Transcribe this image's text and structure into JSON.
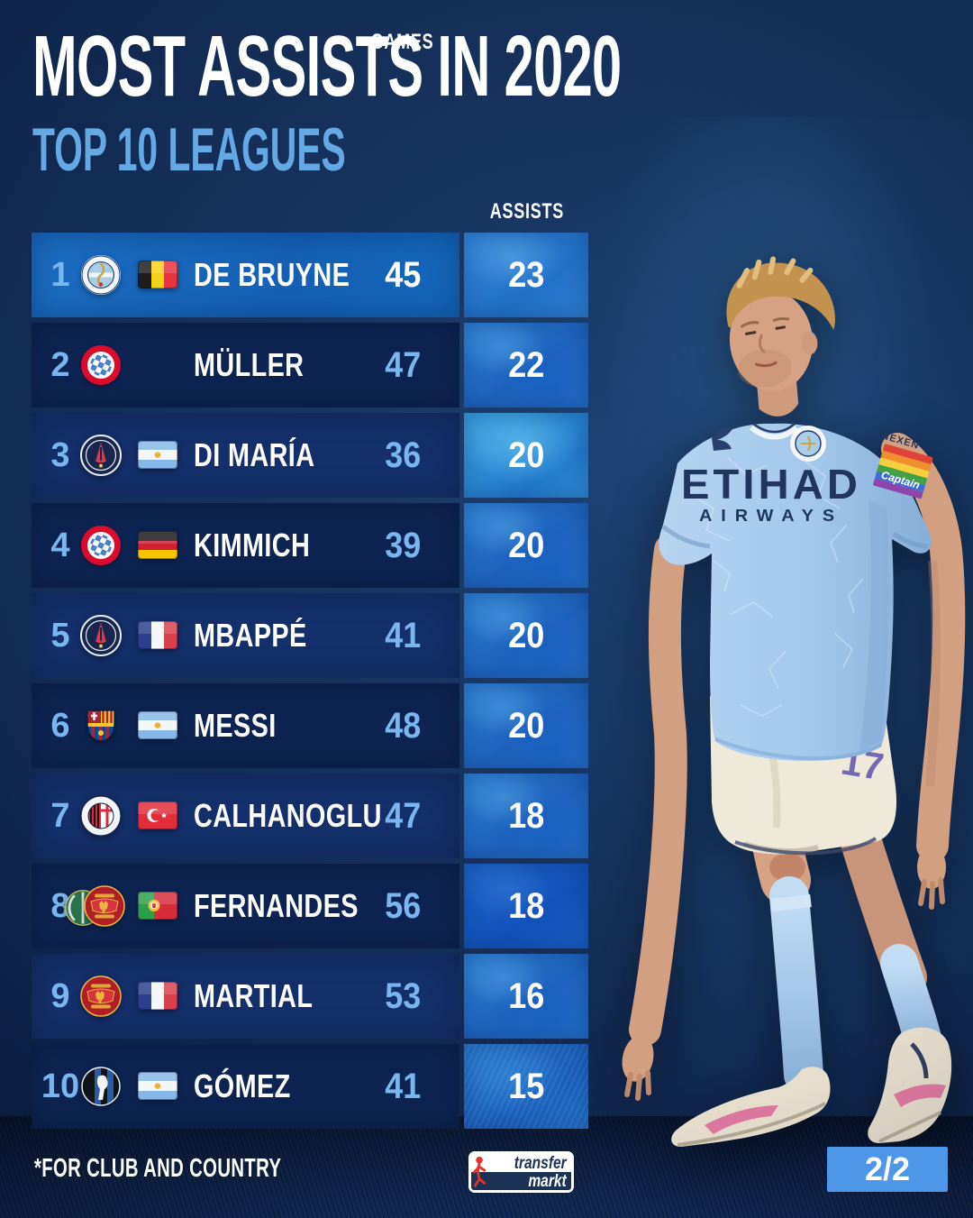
{
  "header": {
    "title": "MOST ASSISTS IN 2020",
    "subtitle": "TOP 10 LEAGUES"
  },
  "table": {
    "games_header": "GAMES",
    "assists_header": "ASSISTS"
  },
  "chart_data": {
    "type": "table",
    "title": "MOST ASSISTS IN 2020 — TOP 10 LEAGUES",
    "columns": [
      "GAMES",
      "ASSISTS"
    ],
    "rows": [
      {
        "rank": "1",
        "clubs": [
          "manchester-city"
        ],
        "flag": "belgium",
        "name": "DE BRUYNE",
        "games": "45",
        "assists": "23",
        "highlight": true
      },
      {
        "rank": "2",
        "clubs": [
          "bayern-munich"
        ],
        "flag": null,
        "name": "MÜLLER",
        "games": "47",
        "assists": "22",
        "highlight": false
      },
      {
        "rank": "3",
        "clubs": [
          "psg"
        ],
        "flag": "argentina",
        "name": "DI MARÍA",
        "games": "36",
        "assists": "20",
        "highlight": false
      },
      {
        "rank": "4",
        "clubs": [
          "bayern-munich"
        ],
        "flag": "germany",
        "name": "KIMMICH",
        "games": "39",
        "assists": "20",
        "highlight": false
      },
      {
        "rank": "5",
        "clubs": [
          "psg"
        ],
        "flag": "france",
        "name": "MBAPPÉ",
        "games": "41",
        "assists": "20",
        "highlight": false
      },
      {
        "rank": "6",
        "clubs": [
          "barcelona"
        ],
        "flag": "argentina",
        "name": "MESSI",
        "games": "48",
        "assists": "20",
        "highlight": false
      },
      {
        "rank": "7",
        "clubs": [
          "ac-milan"
        ],
        "flag": "turkey",
        "name": "CALHANOGLU",
        "games": "47",
        "assists": "18",
        "highlight": false
      },
      {
        "rank": "8",
        "clubs": [
          "sporting-cp",
          "manchester-united"
        ],
        "flag": "portugal",
        "name": "FERNANDES",
        "games": "56",
        "assists": "18",
        "highlight": false
      },
      {
        "rank": "9",
        "clubs": [
          "manchester-united"
        ],
        "flag": "france",
        "name": "MARTIAL",
        "games": "53",
        "assists": "16",
        "highlight": false
      },
      {
        "rank": "10",
        "clubs": [
          "atalanta"
        ],
        "flag": "argentina",
        "name": "GÓMEZ",
        "games": "41",
        "assists": "15",
        "highlight": false
      }
    ]
  },
  "player": {
    "shirt_sponsor_line1": "ETIHAD",
    "shirt_sponsor_line2": "AIRWAYS",
    "sleeve_text": "NEXEN",
    "armband_text": "Captain",
    "shorts_number": "17"
  },
  "footer": {
    "note": "*FOR CLUB AND COUNTRY",
    "brand_line1": "transfer",
    "brand_line2": "markt",
    "page_indicator": "2/2"
  },
  "colors": {
    "background_top": "#1d4070",
    "background_bottom": "#0a1a38",
    "row_highlight": "#1560b5",
    "row_odd": "#14306a",
    "row_even": "#0d2452",
    "assist_box_blue": "#2273cc",
    "accent_light_blue": "#64a9e4",
    "rank_blue": "#79b5ee",
    "page_badge_blue": "#4d96e8",
    "shirt_blue": "#a3c8ec"
  }
}
